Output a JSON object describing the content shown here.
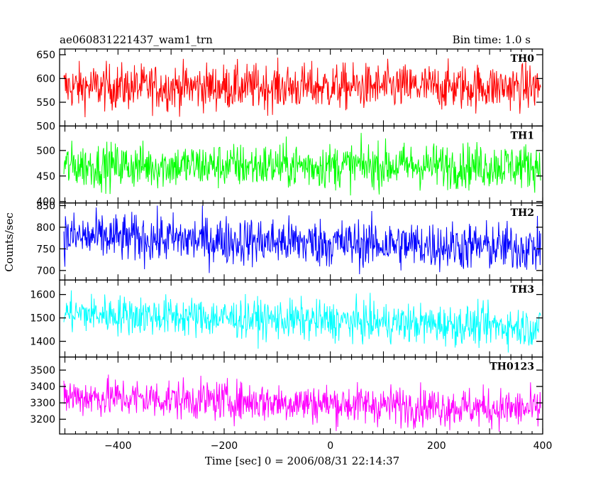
{
  "header": {
    "title": "ae060831221437_wam1_trn",
    "bin_time": "Bin time: 1.0 s"
  },
  "axes": {
    "xlabel": "Time [sec] 0 = 2006/08/31 22:14:37",
    "ylabel": "Counts/sec"
  },
  "chart_data": {
    "type": "line",
    "x_range": [
      -510,
      400
    ],
    "x_ticks": [
      -400,
      -200,
      0,
      200,
      400
    ],
    "x_minor_step": 20,
    "data_x_range": [
      -502,
      396
    ],
    "bin_seconds": 1.0,
    "panels": [
      {
        "name": "TH0",
        "color": "#ff0000",
        "ylim": [
          500,
          662
        ],
        "yticks": [
          500,
          550,
          600,
          650
        ],
        "mean_start": 582,
        "mean_end": 582,
        "noise": 24,
        "range": [
          505,
          652
        ]
      },
      {
        "name": "TH1",
        "color": "#00ff00",
        "ylim": [
          397,
          548
        ],
        "yticks": [
          400,
          450,
          500
        ],
        "mean_start": 470,
        "mean_end": 470,
        "noise": 22,
        "range": [
          405,
          540
        ]
      },
      {
        "name": "TH2",
        "color": "#0000ff",
        "ylim": [
          678,
          856
        ],
        "yticks": [
          700,
          750,
          800,
          850
        ],
        "mean_start": 778,
        "mean_end": 752,
        "noise": 28,
        "range": [
          685,
          850
        ]
      },
      {
        "name": "TH3",
        "color": "#00ffff",
        "ylim": [
          1333,
          1662
        ],
        "yticks": [
          1400,
          1500,
          1600
        ],
        "mean_start": 1520,
        "mean_end": 1460,
        "noise": 42,
        "range": [
          1345,
          1655
        ]
      },
      {
        "name": "TH0123",
        "color": "#ff00ff",
        "ylim": [
          3110,
          3580
        ],
        "yticks": [
          3200,
          3300,
          3400,
          3500
        ],
        "mean_start": 3340,
        "mean_end": 3260,
        "noise": 60,
        "range": [
          3120,
          3550
        ]
      }
    ]
  }
}
